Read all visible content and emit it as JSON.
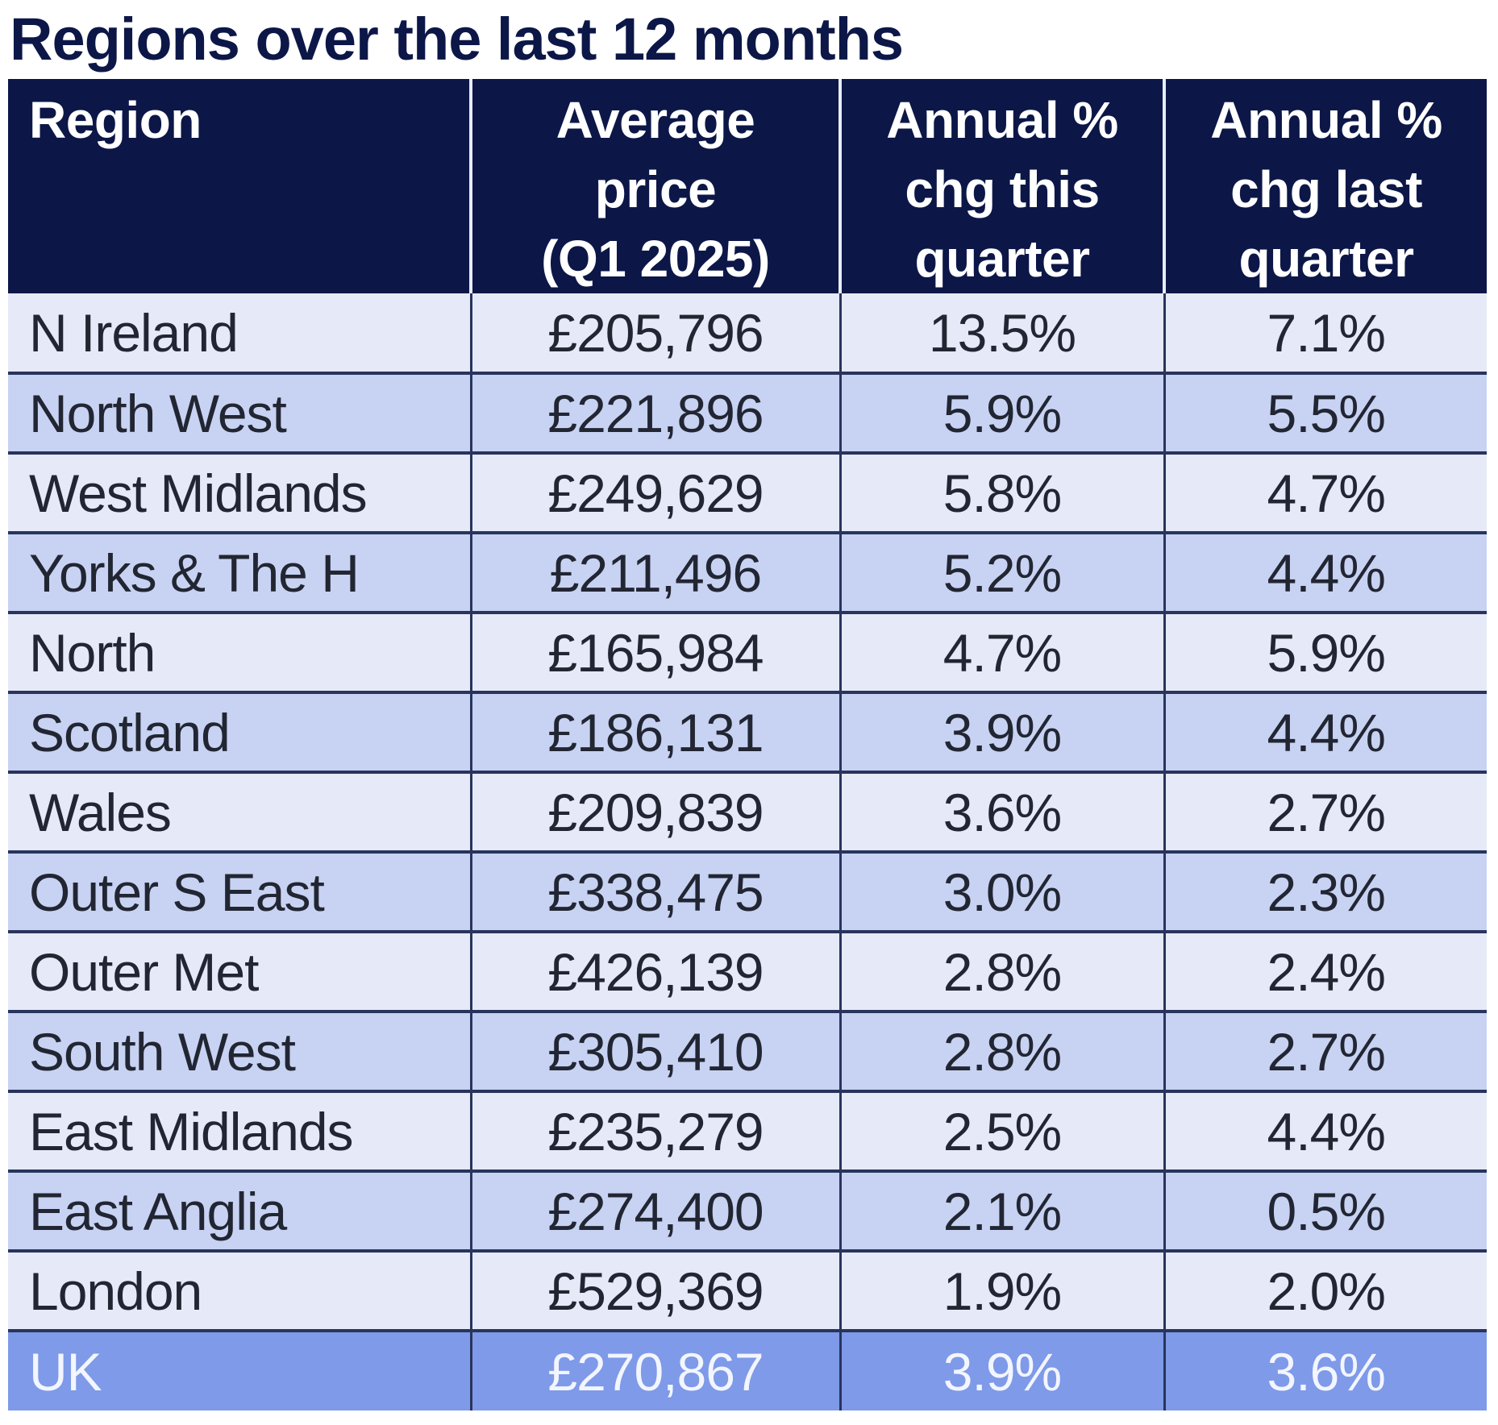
{
  "title": "Regions over the last 12 months",
  "table": {
    "headers": [
      "Region",
      "Average price (Q1 2025)",
      "Annual % chg this quarter",
      "Annual % chg last quarter"
    ],
    "header_lines": [
      [
        "Region"
      ],
      [
        "Average",
        "price",
        "(Q1 2025)"
      ],
      [
        "Annual %",
        "chg this",
        "quarter"
      ],
      [
        "Annual %",
        "chg last",
        "quarter"
      ]
    ],
    "rows": [
      [
        "N Ireland",
        "£205,796",
        "13.5%",
        "7.1%"
      ],
      [
        "North West",
        "£221,896",
        "5.9%",
        "5.5%"
      ],
      [
        "West Midlands",
        "£249,629",
        "5.8%",
        "4.7%"
      ],
      [
        "Yorks & The H",
        "£211,496",
        "5.2%",
        "4.4%"
      ],
      [
        "North",
        "£165,984",
        "4.7%",
        "5.9%"
      ],
      [
        "Scotland",
        "£186,131",
        "3.9%",
        "4.4%"
      ],
      [
        "Wales",
        "£209,839",
        "3.6%",
        "2.7%"
      ],
      [
        "Outer S East",
        "£338,475",
        "3.0%",
        "2.3%"
      ],
      [
        "Outer Met",
        "£426,139",
        "2.8%",
        "2.4%"
      ],
      [
        "South West",
        "£305,410",
        "2.8%",
        "2.7%"
      ],
      [
        "East Midlands",
        "£235,279",
        "2.5%",
        "4.4%"
      ],
      [
        "East Anglia",
        "£274,400",
        "2.1%",
        "0.5%"
      ],
      [
        "London",
        "£529,369",
        "1.9%",
        "2.0%"
      ]
    ],
    "total_row": [
      "UK",
      "£270,867",
      "3.9%",
      "3.6%"
    ]
  },
  "colors": {
    "header_background": "#0c1748",
    "row_light": "#e6e9f7",
    "row_dark": "#c8d3f3",
    "total_row_background": "#7e9ae8",
    "title_text": "#0c1748"
  }
}
